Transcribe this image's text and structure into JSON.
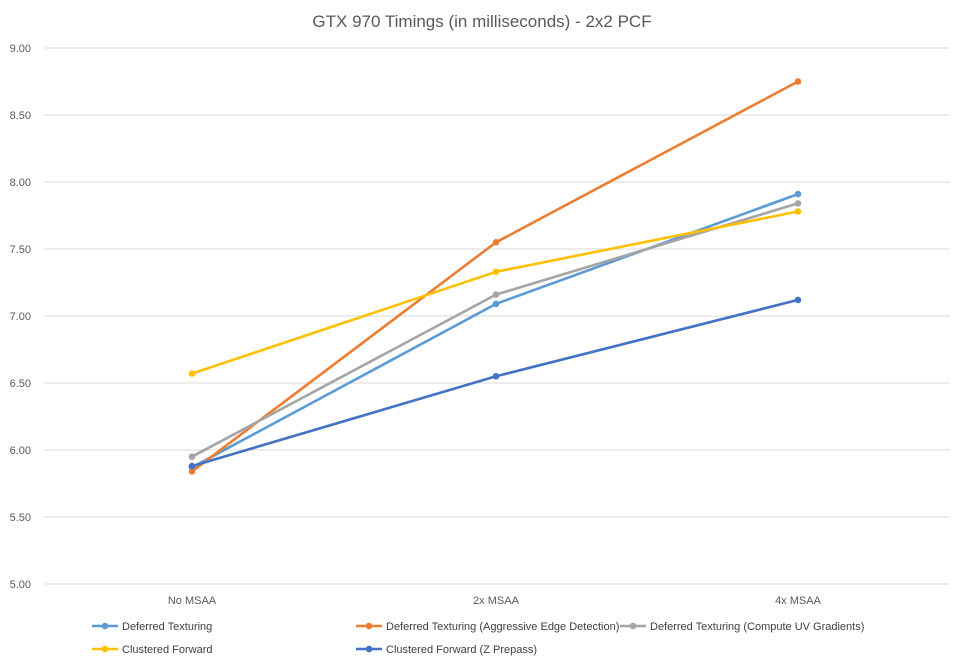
{
  "chart_data": {
    "type": "line",
    "title": "GTX 970  Timings (in milliseconds) - 2x2 PCF",
    "xlabel": "",
    "ylabel": "",
    "categories": [
      "No MSAA",
      "2x MSAA",
      "4x MSAA"
    ],
    "ylim": [
      5.0,
      9.0
    ],
    "yticks": [
      "5.00",
      "5.50",
      "6.00",
      "6.50",
      "7.00",
      "7.50",
      "8.00",
      "8.50",
      "9.00"
    ],
    "grid": true,
    "legend_position": "bottom",
    "series": [
      {
        "name": "Deferred Texturing",
        "color": "#5B9BD5",
        "values": [
          5.87,
          7.09,
          7.91
        ]
      },
      {
        "name": "Deferred Texturing (Aggressive Edge Detection)",
        "color": "#ED7D31",
        "values": [
          5.84,
          7.55,
          8.75
        ]
      },
      {
        "name": "Deferred Texturing (Compute UV Gradients)",
        "color": "#A5A5A5",
        "values": [
          5.95,
          7.16,
          7.84
        ]
      },
      {
        "name": "Clustered Forward",
        "color": "#FFC000",
        "values": [
          6.57,
          7.33,
          7.78
        ]
      },
      {
        "name": "Clustered Forward (Z Prepass)",
        "color": "#4472C4",
        "values": [
          5.88,
          6.55,
          7.12
        ]
      }
    ]
  }
}
